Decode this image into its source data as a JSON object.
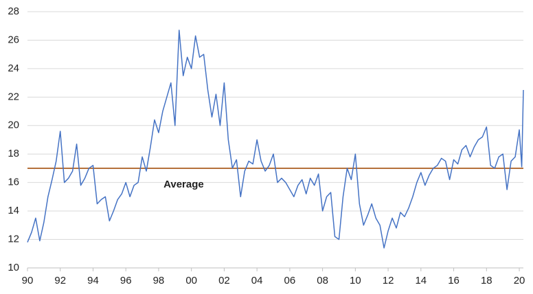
{
  "chart_data": {
    "type": "line",
    "x": [
      1990,
      1990.25,
      1990.5,
      1990.75,
      1991,
      1991.25,
      1991.5,
      1991.75,
      1992,
      1992.25,
      1992.5,
      1992.75,
      1993,
      1993.25,
      1993.5,
      1993.75,
      1994,
      1994.25,
      1994.5,
      1994.75,
      1995,
      1995.25,
      1995.5,
      1995.75,
      1996,
      1996.25,
      1996.5,
      1996.75,
      1997,
      1997.25,
      1997.5,
      1997.75,
      1998,
      1998.25,
      1998.5,
      1998.75,
      1999,
      1999.25,
      1999.5,
      1999.75,
      2000,
      2000.25,
      2000.5,
      2000.75,
      2001,
      2001.25,
      2001.5,
      2001.75,
      2002,
      2002.25,
      2002.5,
      2002.75,
      2003,
      2003.25,
      2003.5,
      2003.75,
      2004,
      2004.25,
      2004.5,
      2004.75,
      2005,
      2005.25,
      2005.5,
      2005.75,
      2006,
      2006.25,
      2006.5,
      2006.75,
      2007,
      2007.25,
      2007.5,
      2007.75,
      2008,
      2008.25,
      2008.5,
      2008.75,
      2009,
      2009.25,
      2009.5,
      2009.75,
      2010,
      2010.25,
      2010.5,
      2010.75,
      2011,
      2011.25,
      2011.5,
      2011.75,
      2012,
      2012.25,
      2012.5,
      2012.75,
      2013,
      2013.25,
      2013.5,
      2013.75,
      2014,
      2014.25,
      2014.5,
      2014.75,
      2015,
      2015.25,
      2015.5,
      2015.75,
      2016,
      2016.25,
      2016.5,
      2016.75,
      2017,
      2017.25,
      2017.5,
      2017.75,
      2018,
      2018.25,
      2018.5,
      2018.75,
      2019,
      2019.25,
      2019.5,
      2019.75,
      2020,
      2020.15,
      2020.25
    ],
    "series": [
      {
        "color": "#4472c4",
        "values": [
          11.8,
          12.5,
          13.5,
          11.9,
          13.2,
          15.0,
          16.2,
          17.5,
          19.6,
          16.0,
          16.3,
          16.8,
          18.7,
          15.8,
          16.3,
          17.0,
          17.2,
          14.5,
          14.8,
          15.0,
          13.3,
          14.0,
          14.8,
          15.2,
          16.0,
          15.0,
          15.8,
          16.0,
          17.8,
          16.8,
          18.5,
          20.4,
          19.5,
          21.0,
          22.0,
          23.0,
          20.0,
          26.7,
          23.5,
          24.8,
          24.0,
          26.3,
          24.8,
          25.0,
          22.5,
          20.6,
          22.2,
          20.0,
          23.0,
          19.0,
          17.0,
          17.6,
          15.0,
          16.8,
          17.5,
          17.3,
          19.0,
          17.5,
          16.8,
          17.2,
          18.0,
          16.0,
          16.3,
          16.0,
          15.5,
          15.0,
          15.8,
          16.2,
          15.2,
          16.3,
          15.8,
          16.6,
          14.0,
          15.0,
          15.3,
          12.2,
          12.0,
          15.0,
          17.0,
          16.2,
          18.0,
          14.5,
          13.0,
          13.7,
          14.5,
          13.5,
          13.0,
          11.4,
          12.6,
          13.5,
          12.8,
          13.9,
          13.6,
          14.2,
          15.0,
          16.0,
          16.7,
          15.8,
          16.5,
          17.0,
          17.2,
          17.7,
          17.5,
          16.2,
          17.6,
          17.3,
          18.3,
          18.6,
          17.8,
          18.5,
          19.0,
          19.2,
          19.9,
          17.2,
          17.0,
          17.8,
          18.0,
          15.5,
          17.5,
          17.8,
          19.7,
          17.1,
          22.5
        ]
      }
    ],
    "average": {
      "label": "Average",
      "value": 17,
      "color": "#b5703a"
    },
    "xlim": [
      1990,
      2020.25
    ],
    "xticks": [
      {
        "value": 1990,
        "label": "90"
      },
      {
        "value": 1992,
        "label": "92"
      },
      {
        "value": 1994,
        "label": "94"
      },
      {
        "value": 1996,
        "label": "96"
      },
      {
        "value": 1998,
        "label": "98"
      },
      {
        "value": 2000,
        "label": "00"
      },
      {
        "value": 2002,
        "label": "02"
      },
      {
        "value": 2004,
        "label": "04"
      },
      {
        "value": 2006,
        "label": "06"
      },
      {
        "value": 2008,
        "label": "08"
      },
      {
        "value": 2010,
        "label": "10"
      },
      {
        "value": 2012,
        "label": "12"
      },
      {
        "value": 2014,
        "label": "14"
      },
      {
        "value": 2016,
        "label": "16"
      },
      {
        "value": 2018,
        "label": "18"
      },
      {
        "value": 2020,
        "label": "20"
      }
    ],
    "ylim": [
      10,
      28
    ],
    "yticks": [
      10,
      12,
      14,
      16,
      18,
      20,
      22,
      24,
      26,
      28
    ],
    "grid": true
  }
}
